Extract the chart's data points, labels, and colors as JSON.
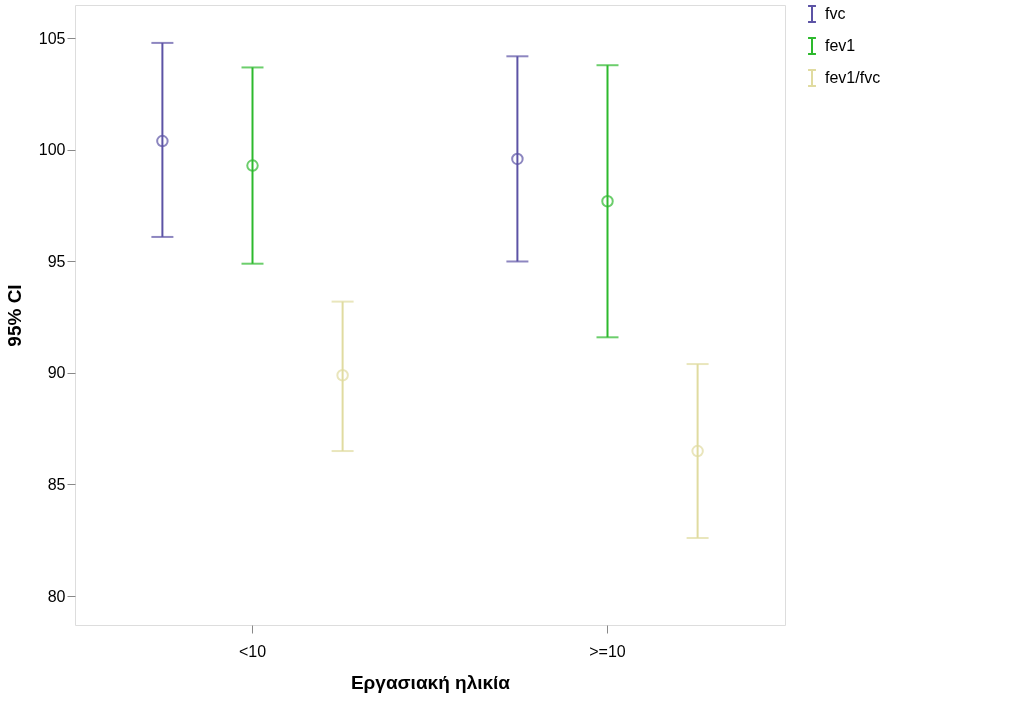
{
  "chart_data": {
    "type": "scatter",
    "xlabel": "Εργασιακή ηλικία",
    "ylabel": "95% CI",
    "categories": [
      "<10",
      ">=10"
    ],
    "series": [
      {
        "name": "fvc",
        "color": "#5c53a5",
        "values": [
          100.4,
          99.6
        ],
        "errors": [
          [
            96.1,
            104.8
          ],
          [
            95.0,
            104.2
          ]
        ]
      },
      {
        "name": "fev1",
        "color": "#2db92d",
        "values": [
          99.3,
          97.7
        ],
        "errors": [
          [
            94.9,
            103.7
          ],
          [
            91.6,
            103.8
          ]
        ]
      },
      {
        "name": "fev1/fvc",
        "color": "#e0dba0",
        "values": [
          89.9,
          86.5
        ],
        "errors": [
          [
            86.5,
            93.2
          ],
          [
            82.6,
            90.4
          ]
        ]
      }
    ],
    "ylim": [
      78.7,
      106.5
    ],
    "yticks": [
      80,
      85,
      90,
      95,
      100,
      105
    ],
    "grid": false,
    "legend": "top right",
    "marker": "circle"
  }
}
